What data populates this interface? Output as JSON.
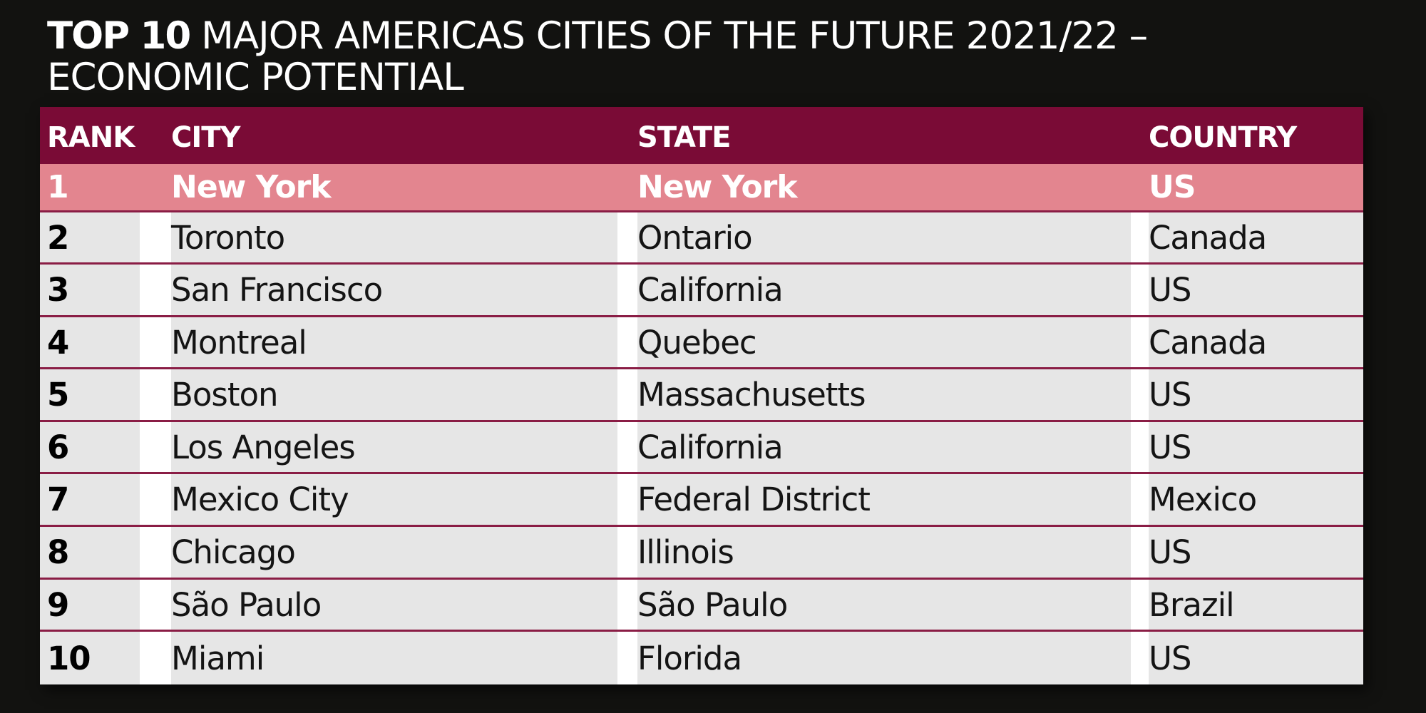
{
  "title": {
    "bold": "TOP 10",
    "rest": " MAJOR AMERICAS CITIES OF THE FUTURE 2021/22 – ECONOMIC POTENTIAL"
  },
  "colors": {
    "header_bg": "#7a0b36",
    "highlight_bg": "#e3858f",
    "row_divider": "#8a1d45",
    "page_bg": "#121210"
  },
  "chart_data": {
    "type": "table",
    "title": "TOP 10 MAJOR AMERICAS CITIES OF THE FUTURE 2021/22 – ECONOMIC POTENTIAL",
    "columns": [
      "RANK",
      "CITY",
      "STATE",
      "COUNTRY"
    ],
    "rows": [
      [
        "1",
        "New York",
        "New York",
        "US"
      ],
      [
        "2",
        "Toronto",
        "Ontario",
        "Canada"
      ],
      [
        "3",
        "San Francisco",
        "California",
        "US"
      ],
      [
        "4",
        "Montreal",
        "Quebec",
        "Canada"
      ],
      [
        "5",
        "Boston",
        "Massachusetts",
        "US"
      ],
      [
        "6",
        "Los Angeles",
        "California",
        "US"
      ],
      [
        "7",
        "Mexico City",
        "Federal District",
        "Mexico"
      ],
      [
        "8",
        "Chicago",
        "Illinois",
        "US"
      ],
      [
        "9",
        "São Paulo",
        "São Paulo",
        "Brazil"
      ],
      [
        "10",
        "Miami",
        "Florida",
        "US"
      ]
    ]
  }
}
